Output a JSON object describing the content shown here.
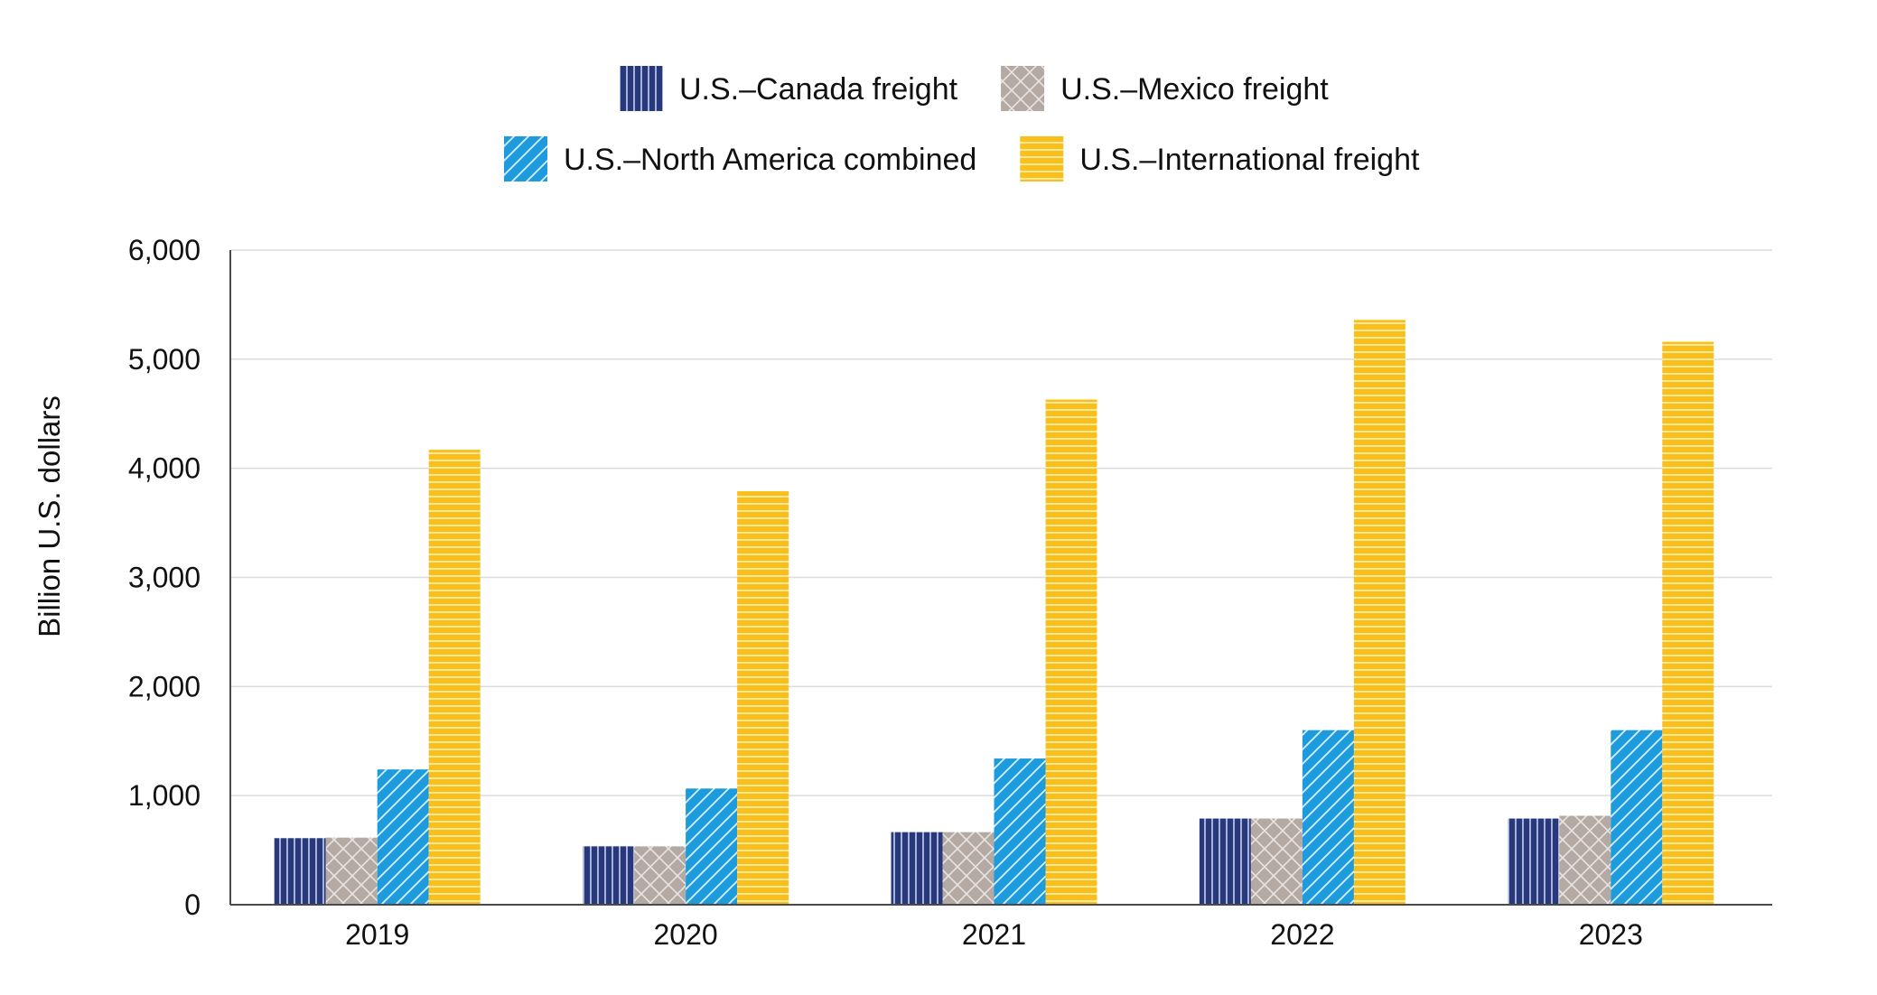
{
  "chart_data": {
    "type": "bar",
    "title": "",
    "xlabel": "",
    "ylabel": "Billion U.S. dollars",
    "ylim": [
      0,
      6000
    ],
    "yticks": [
      0,
      1000,
      2000,
      3000,
      4000,
      5000,
      6000
    ],
    "ytick_labels": [
      "0",
      "1,000",
      "2,000",
      "3,000",
      "4,000",
      "5,000",
      "6,000"
    ],
    "categories": [
      "2019",
      "2020",
      "2021",
      "2022",
      "2023"
    ],
    "grid": true,
    "legend_position": "top",
    "series": [
      {
        "name": "U.S.–Canada freight",
        "values": [
          610,
          535,
          665,
          790,
          790
        ],
        "color": "#27397c",
        "pattern": "vertical-lines"
      },
      {
        "name": "U.S.–Mexico freight",
        "values": [
          615,
          535,
          665,
          790,
          815
        ],
        "color": "#b4a9a3",
        "pattern": "crosshatch"
      },
      {
        "name": "U.S.–North America combined",
        "values": [
          1240,
          1065,
          1340,
          1600,
          1600
        ],
        "color": "#1e9bdc",
        "pattern": "diagonal-lines"
      },
      {
        "name": "U.S.–International freight",
        "values": [
          4170,
          3790,
          4630,
          5360,
          5160
        ],
        "color": "#fbbf1a",
        "pattern": "horizontal-lines"
      }
    ]
  }
}
